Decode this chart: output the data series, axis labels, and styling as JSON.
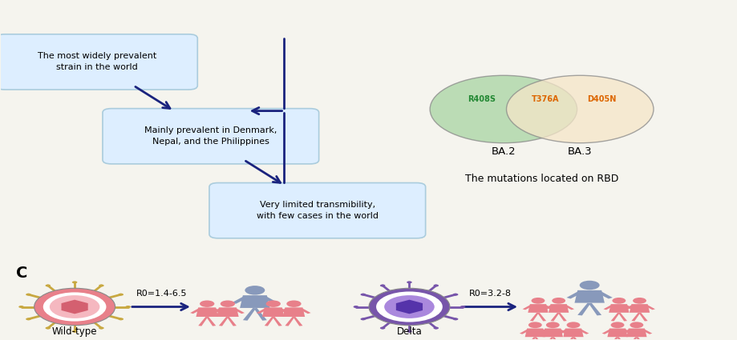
{
  "bg_color": "#f5f4ee",
  "arrow_color": "#1a237e",
  "box_bg": "#ddeeff",
  "box_border": "#aaccdd",
  "venn_ba2_color": "#a8d5a2",
  "venn_ba3_color": "#f5e6c8",
  "ba2_label": "BA.2",
  "ba3_label": "BA.3",
  "rbd_label": "The mutations located on RBD",
  "r408s_label": "R408S",
  "t376a_label": "T376A",
  "d405n_label": "D405N",
  "section_c_label": "C",
  "wildtype_label": "Wild-type",
  "delta_label": "Delta",
  "r0_wildtype": "R0=1.4-6.5",
  "r0_delta": "R0=3.2-8",
  "person_pink": "#e8808a",
  "person_blue": "#8899bb",
  "virus_wt_outer": "#e8808a",
  "virus_wt_inner": "#f5b8c0",
  "virus_wt_core": "#d46070",
  "virus_delta_outer": "#7755aa",
  "virus_delta_middle": "#9977cc",
  "virus_delta_inner": "#aa88dd",
  "virus_delta_core": "#5533aa",
  "spike_color_wt": "#c8a840",
  "spike_color_delta": "#7755aa"
}
